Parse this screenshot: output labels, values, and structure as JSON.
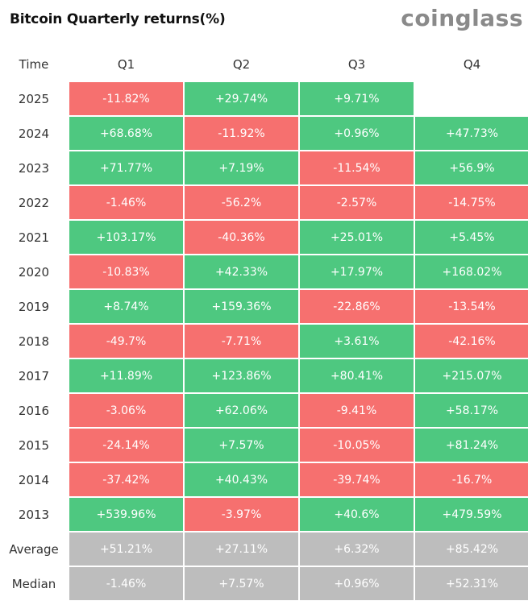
{
  "header": {
    "title": "Bitcoin Quarterly returns(%)",
    "brand": "coinglass"
  },
  "colors": {
    "positive": "#4ec880",
    "negative": "#f6706f",
    "stat": "#bdbdbd"
  },
  "chart_data": {
    "type": "table",
    "title": "Bitcoin Quarterly returns(%)",
    "row_header": "Time",
    "columns": [
      "Q1",
      "Q2",
      "Q3",
      "Q4"
    ],
    "rows": [
      {
        "label": "2025",
        "values": [
          "-11.82%",
          "+29.74%",
          "+9.71%",
          ""
        ]
      },
      {
        "label": "2024",
        "values": [
          "+68.68%",
          "-11.92%",
          "+0.96%",
          "+47.73%"
        ]
      },
      {
        "label": "2023",
        "values": [
          "+71.77%",
          "+7.19%",
          "-11.54%",
          "+56.9%"
        ]
      },
      {
        "label": "2022",
        "values": [
          "-1.46%",
          "-56.2%",
          "-2.57%",
          "-14.75%"
        ]
      },
      {
        "label": "2021",
        "values": [
          "+103.17%",
          "-40.36%",
          "+25.01%",
          "+5.45%"
        ]
      },
      {
        "label": "2020",
        "values": [
          "-10.83%",
          "+42.33%",
          "+17.97%",
          "+168.02%"
        ]
      },
      {
        "label": "2019",
        "values": [
          "+8.74%",
          "+159.36%",
          "-22.86%",
          "-13.54%"
        ]
      },
      {
        "label": "2018",
        "values": [
          "-49.7%",
          "-7.71%",
          "+3.61%",
          "-42.16%"
        ]
      },
      {
        "label": "2017",
        "values": [
          "+11.89%",
          "+123.86%",
          "+80.41%",
          "+215.07%"
        ]
      },
      {
        "label": "2016",
        "values": [
          "-3.06%",
          "+62.06%",
          "-9.41%",
          "+58.17%"
        ]
      },
      {
        "label": "2015",
        "values": [
          "-24.14%",
          "+7.57%",
          "-10.05%",
          "+81.24%"
        ]
      },
      {
        "label": "2014",
        "values": [
          "-37.42%",
          "+40.43%",
          "-39.74%",
          "-16.7%"
        ]
      },
      {
        "label": "2013",
        "values": [
          "+539.96%",
          "-3.97%",
          "+40.6%",
          "+479.59%"
        ]
      }
    ],
    "summary_rows": [
      {
        "label": "Average",
        "values": [
          "+51.21%",
          "+27.11%",
          "+6.32%",
          "+85.42%"
        ]
      },
      {
        "label": "Median",
        "values": [
          "-1.46%",
          "+7.57%",
          "+0.96%",
          "+52.31%"
        ]
      }
    ]
  }
}
